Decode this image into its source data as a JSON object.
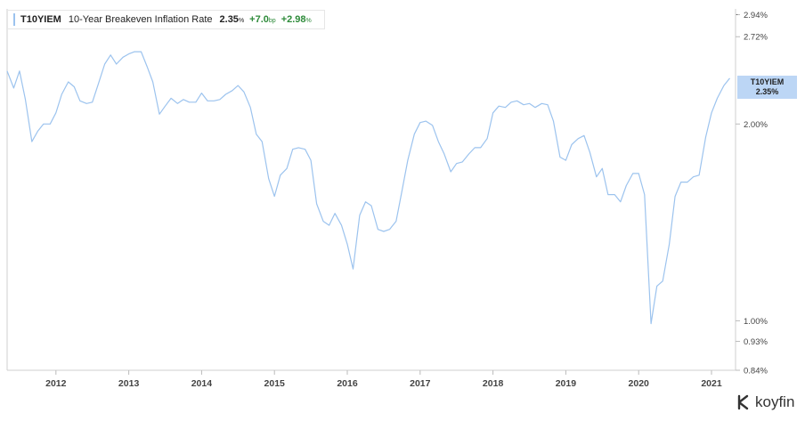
{
  "legend": {
    "ticker": "T10YIEM",
    "name": "10-Year Breakeven Inflation Rate",
    "value": "2.35",
    "value_unit": "%",
    "change_bp": "+7.0",
    "change_bp_unit": "bp",
    "change_pct": "+2.98",
    "change_pct_unit": "%",
    "color": "#9cc3ee",
    "positive_color": "#2e8b3a"
  },
  "tag": {
    "ticker": "T10YIEM",
    "value": "2.35%"
  },
  "brand": {
    "name": "koyfin",
    "icon": "koyfin-logo-icon"
  },
  "chart_data": {
    "type": "line",
    "scale": "log",
    "ylim": [
      0.84,
      3.0
    ],
    "xlim": [
      2011.33,
      2021.33
    ],
    "y_ticks": [
      0.84,
      0.93,
      1.0,
      2.0,
      2.72,
      2.94
    ],
    "y_tick_labels": [
      "0.84%",
      "0.93%",
      "1.00%",
      "2.00%",
      "2.72%",
      "2.94%"
    ],
    "x_ticks": [
      2012,
      2013,
      2014,
      2015,
      2016,
      2017,
      2018,
      2019,
      2020,
      2021
    ],
    "x_tick_labels": [
      "2012",
      "2013",
      "2014",
      "2015",
      "2016",
      "2017",
      "2018",
      "2019",
      "2020",
      "2021"
    ],
    "grid": false,
    "series": [
      {
        "name": "T10YIEM",
        "color": "#9cc3ee",
        "x": [
          2011.33,
          2011.42,
          2011.5,
          2011.58,
          2011.67,
          2011.75,
          2011.83,
          2011.92,
          2012.0,
          2012.08,
          2012.17,
          2012.25,
          2012.33,
          2012.42,
          2012.5,
          2012.58,
          2012.67,
          2012.75,
          2012.83,
          2012.92,
          2013.0,
          2013.08,
          2013.17,
          2013.25,
          2013.33,
          2013.42,
          2013.5,
          2013.58,
          2013.67,
          2013.75,
          2013.83,
          2013.92,
          2014.0,
          2014.08,
          2014.17,
          2014.25,
          2014.33,
          2014.42,
          2014.5,
          2014.58,
          2014.67,
          2014.75,
          2014.83,
          2014.92,
          2015.0,
          2015.08,
          2015.17,
          2015.25,
          2015.33,
          2015.42,
          2015.5,
          2015.58,
          2015.67,
          2015.75,
          2015.83,
          2015.92,
          2016.0,
          2016.08,
          2016.17,
          2016.25,
          2016.33,
          2016.42,
          2016.5,
          2016.58,
          2016.67,
          2016.75,
          2016.83,
          2016.92,
          2017.0,
          2017.08,
          2017.17,
          2017.25,
          2017.33,
          2017.42,
          2017.5,
          2017.58,
          2017.67,
          2017.75,
          2017.83,
          2017.92,
          2018.0,
          2018.08,
          2018.17,
          2018.25,
          2018.33,
          2018.42,
          2018.5,
          2018.58,
          2018.67,
          2018.75,
          2018.83,
          2018.92,
          2019.0,
          2019.08,
          2019.17,
          2019.25,
          2019.33,
          2019.42,
          2019.5,
          2019.58,
          2019.67,
          2019.75,
          2019.83,
          2019.92,
          2020.0,
          2020.08,
          2020.17,
          2020.25,
          2020.33,
          2020.42,
          2020.5,
          2020.58,
          2020.67,
          2020.75,
          2020.83,
          2020.92,
          2021.0,
          2021.08,
          2021.17,
          2021.25
        ],
        "y": [
          2.41,
          2.27,
          2.41,
          2.18,
          1.88,
          1.95,
          2.0,
          2.0,
          2.08,
          2.22,
          2.32,
          2.28,
          2.17,
          2.15,
          2.16,
          2.3,
          2.47,
          2.55,
          2.47,
          2.53,
          2.56,
          2.58,
          2.58,
          2.45,
          2.32,
          2.07,
          2.13,
          2.19,
          2.15,
          2.18,
          2.16,
          2.16,
          2.23,
          2.17,
          2.17,
          2.18,
          2.22,
          2.25,
          2.29,
          2.24,
          2.12,
          1.93,
          1.88,
          1.65,
          1.55,
          1.67,
          1.71,
          1.83,
          1.84,
          1.83,
          1.76,
          1.51,
          1.42,
          1.4,
          1.46,
          1.4,
          1.31,
          1.2,
          1.45,
          1.52,
          1.5,
          1.38,
          1.37,
          1.38,
          1.42,
          1.58,
          1.76,
          1.93,
          2.01,
          2.02,
          1.99,
          1.88,
          1.8,
          1.69,
          1.74,
          1.75,
          1.8,
          1.84,
          1.84,
          1.9,
          2.08,
          2.13,
          2.12,
          2.16,
          2.17,
          2.14,
          2.15,
          2.12,
          2.15,
          2.14,
          2.02,
          1.78,
          1.76,
          1.86,
          1.9,
          1.92,
          1.81,
          1.66,
          1.71,
          1.56,
          1.56,
          1.52,
          1.61,
          1.68,
          1.68,
          1.56,
          0.99,
          1.13,
          1.15,
          1.31,
          1.55,
          1.63,
          1.63,
          1.66,
          1.67,
          1.91,
          2.08,
          2.19,
          2.29,
          2.35
        ]
      }
    ]
  }
}
